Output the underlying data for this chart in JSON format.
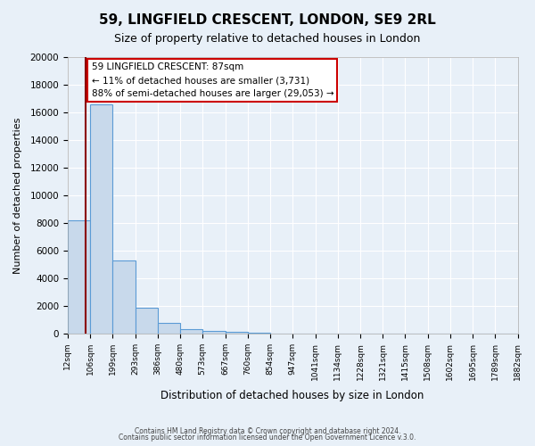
{
  "title": "59, LINGFIELD CRESCENT, LONDON, SE9 2RL",
  "subtitle": "Size of property relative to detached houses in London",
  "xlabel": "Distribution of detached houses by size in London",
  "ylabel": "Number of detached properties",
  "bin_labels": [
    "12sqm",
    "106sqm",
    "199sqm",
    "293sqm",
    "386sqm",
    "480sqm",
    "573sqm",
    "667sqm",
    "760sqm",
    "854sqm",
    "947sqm",
    "1041sqm",
    "1134sqm",
    "1228sqm",
    "1321sqm",
    "1415sqm",
    "1508sqm",
    "1602sqm",
    "1695sqm",
    "1789sqm",
    "1882sqm"
  ],
  "bin_edges": [
    12,
    106,
    199,
    293,
    386,
    480,
    573,
    667,
    760,
    854,
    947,
    1041,
    1134,
    1228,
    1321,
    1415,
    1508,
    1602,
    1695,
    1789,
    1882
  ],
  "bar_heights": [
    8200,
    16600,
    5300,
    1850,
    750,
    300,
    180,
    120,
    80,
    0,
    0,
    0,
    0,
    0,
    0,
    0,
    0,
    0,
    0,
    0
  ],
  "bar_color": "#c8d9eb",
  "bar_edge_color": "#5b9bd5",
  "property_value": 87,
  "property_line_color": "#8b0000",
  "annotation_text1": "59 LINGFIELD CRESCENT: 87sqm",
  "annotation_text2": "← 11% of detached houses are smaller (3,731)",
  "annotation_text3": "88% of semi-detached houses are larger (29,053) →",
  "annotation_box_color": "#ffffff",
  "annotation_box_edge_color": "#cc0000",
  "ylim": [
    0,
    20000
  ],
  "yticks": [
    0,
    2000,
    4000,
    6000,
    8000,
    10000,
    12000,
    14000,
    16000,
    18000,
    20000
  ],
  "footer1": "Contains HM Land Registry data © Crown copyright and database right 2024.",
  "footer2": "Contains public sector information licensed under the Open Government Licence v.3.0.",
  "background_color": "#e8f0f8",
  "axes_background_color": "#e8f0f8",
  "grid_color": "#ffffff"
}
